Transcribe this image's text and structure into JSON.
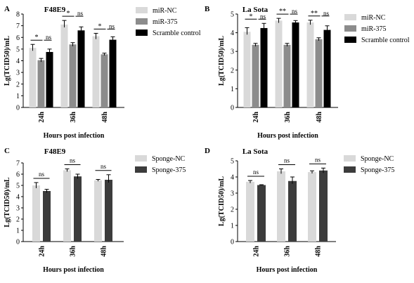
{
  "chart_data": [
    {
      "type": "bar",
      "panel": "A",
      "title": "F48E9",
      "ylabel": "Lg(TCID50)/mL",
      "xlabel": "Hours post infection",
      "ylim": [
        0,
        8
      ],
      "yticks": [
        0,
        1,
        2,
        3,
        4,
        5,
        6,
        7,
        8
      ],
      "categories": [
        "24h",
        "36h",
        "48h"
      ],
      "series": [
        {
          "name": "miR-NC",
          "color": "#d9d9d9",
          "values": [
            5.1,
            7.1,
            6.1
          ],
          "errors": [
            0.3,
            0.35,
            0.25
          ]
        },
        {
          "name": "miR-375",
          "color": "#8c8c8c",
          "values": [
            4.05,
            5.4,
            4.55
          ],
          "errors": [
            0.15,
            0.15,
            0.1
          ]
        },
        {
          "name": "Scramble control",
          "color": "#000000",
          "values": [
            4.75,
            6.6,
            5.8
          ],
          "errors": [
            0.25,
            0.3,
            0.25
          ]
        }
      ],
      "annotations": [
        {
          "category": "24h",
          "sig": "*",
          "ns": "ns"
        },
        {
          "category": "36h",
          "sig": "*",
          "ns": "ns"
        },
        {
          "category": "48h",
          "sig": "*",
          "ns": "ns"
        }
      ]
    },
    {
      "type": "bar",
      "panel": "B",
      "title": "La Sota",
      "ylabel": "Lg(TCID50)/mL",
      "xlabel": "Hours post infection",
      "ylim": [
        0,
        5
      ],
      "yticks": [
        0,
        1,
        2,
        3,
        4,
        5
      ],
      "categories": [
        "24h",
        "36h",
        "48h"
      ],
      "series": [
        {
          "name": "miR-NC",
          "color": "#d9d9d9",
          "values": [
            4.05,
            4.65,
            4.55
          ],
          "errors": [
            0.22,
            0.12,
            0.12
          ]
        },
        {
          "name": "miR-375",
          "color": "#8c8c8c",
          "values": [
            3.35,
            3.35,
            3.65
          ],
          "errors": [
            0.08,
            0.08,
            0.08
          ]
        },
        {
          "name": "Scramble control",
          "color": "#000000",
          "values": [
            4.25,
            4.55,
            4.15
          ],
          "errors": [
            0.25,
            0.1,
            0.22
          ]
        }
      ],
      "annotations": [
        {
          "category": "24h",
          "sig": "*",
          "ns": "ns"
        },
        {
          "category": "36h",
          "sig": "**",
          "ns": "ns"
        },
        {
          "category": "48h",
          "sig": "**",
          "ns": "ns"
        }
      ]
    },
    {
      "type": "bar",
      "panel": "C",
      "title": "F48E9",
      "ylabel": "Lg(TCID50)/mL",
      "xlabel": "Hours post infection",
      "ylim": [
        0,
        7
      ],
      "yticks": [
        0,
        1,
        2,
        3,
        4,
        5,
        6,
        7
      ],
      "categories": [
        "24h",
        "36h",
        "48h"
      ],
      "series": [
        {
          "name": "Sponge-NC",
          "color": "#d9d9d9",
          "values": [
            5.0,
            6.35,
            5.45
          ],
          "errors": [
            0.25,
            0.12,
            0.08
          ]
        },
        {
          "name": "Sponge-375",
          "color": "#3c3c3c",
          "values": [
            4.5,
            5.8,
            5.5
          ],
          "errors": [
            0.15,
            0.2,
            0.45
          ]
        }
      ],
      "annotations": [
        {
          "category": "24h",
          "ns": "ns"
        },
        {
          "category": "36h",
          "ns": "ns"
        },
        {
          "category": "48h",
          "ns": "ns"
        }
      ]
    },
    {
      "type": "bar",
      "panel": "D",
      "title": "La Sota",
      "ylabel": "Lg(TCID50)/mL",
      "xlabel": "Hours post infection",
      "ylim": [
        0,
        5
      ],
      "yticks": [
        0,
        1,
        2,
        3,
        4,
        5
      ],
      "categories": [
        "24h",
        "36h",
        "48h"
      ],
      "series": [
        {
          "name": "Sponge-NC",
          "color": "#d9d9d9",
          "values": [
            3.7,
            4.35,
            4.3
          ],
          "errors": [
            0.08,
            0.15,
            0.08
          ]
        },
        {
          "name": "Sponge-375",
          "color": "#3c3c3c",
          "values": [
            3.5,
            3.75,
            4.4
          ],
          "errors": [
            0.02,
            0.25,
            0.15
          ]
        }
      ],
      "annotations": [
        {
          "category": "24h",
          "ns": "ns"
        },
        {
          "category": "36h",
          "ns": "ns"
        },
        {
          "category": "48h",
          "ns": "ns"
        }
      ]
    }
  ]
}
